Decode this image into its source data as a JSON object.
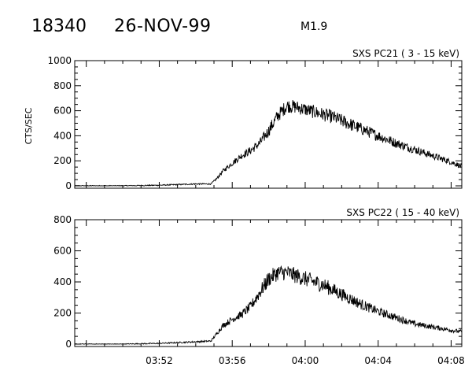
{
  "header": {
    "event_number": "18340",
    "date": "26-NOV-99",
    "goes_class": "M1.9"
  },
  "chart_data": [
    {
      "type": "line",
      "title": "SXS PC21  (  3 - 15 keV)",
      "ylabel": "CTS/SEC",
      "xlabel": "",
      "ylim": [
        0,
        1000
      ],
      "yticks": [
        0,
        200,
        400,
        600,
        800,
        1000
      ],
      "xlim_minutes": [
        3.5,
        8.75
      ],
      "x_tick_minutes": [
        1.0,
        3.0,
        5.0,
        7.0,
        9.0,
        11.0,
        13.0,
        15.0,
        17.0,
        19.0
      ],
      "x_tick_labels": [
        "",
        "",
        "",
        "",
        "",
        "",
        "",
        "",
        "",
        ""
      ],
      "noise_fraction": 0.05,
      "series": [
        {
          "x_time": [
            "03:48",
            "03:50",
            "03:52",
            "03:53",
            "03:54",
            "03:54:50",
            "03:55:10",
            "03:55:30",
            "03:56",
            "03:56:30",
            "03:57",
            "03:57:30",
            "03:58",
            "03:58:30",
            "03:59",
            "03:59:30",
            "04:00",
            "04:00:30",
            "04:01",
            "04:01:30",
            "04:02",
            "04:02:30",
            "04:03",
            "04:04",
            "04:05",
            "04:06",
            "04:07",
            "04:08",
            "04:08:30"
          ],
          "y": [
            0,
            0,
            5,
            10,
            15,
            15,
            60,
            120,
            180,
            240,
            280,
            340,
            440,
            560,
            640,
            630,
            610,
            590,
            570,
            550,
            520,
            490,
            460,
            400,
            340,
            290,
            240,
            190,
            160
          ]
        }
      ]
    },
    {
      "type": "line",
      "title": "SXS PC22  ( 15 - 40 keV)",
      "ylabel": "",
      "xlabel": "",
      "ylim": [
        0,
        800
      ],
      "yticks": [
        0,
        200,
        400,
        600,
        800
      ],
      "x_tick_labels": [
        "03:52",
        "03:56",
        "04:00",
        "04:04",
        "04:08"
      ],
      "noise_fraction": 0.06,
      "series": [
        {
          "x_time": [
            "03:48",
            "03:50",
            "03:52",
            "03:53",
            "03:54",
            "03:54:50",
            "03:55:10",
            "03:55:30",
            "03:56",
            "03:56:30",
            "03:57",
            "03:57:30",
            "03:58",
            "03:58:30",
            "03:59",
            "03:59:30",
            "04:00",
            "04:00:30",
            "04:01",
            "04:01:30",
            "04:02",
            "04:02:30",
            "04:03",
            "04:04",
            "04:05",
            "04:06",
            "04:07",
            "04:08",
            "04:08:30"
          ],
          "y": [
            0,
            0,
            5,
            10,
            15,
            20,
            70,
            120,
            160,
            190,
            240,
            330,
            420,
            460,
            460,
            440,
            420,
            400,
            380,
            350,
            320,
            290,
            260,
            210,
            170,
            130,
            110,
            90,
            80
          ]
        }
      ]
    }
  ]
}
